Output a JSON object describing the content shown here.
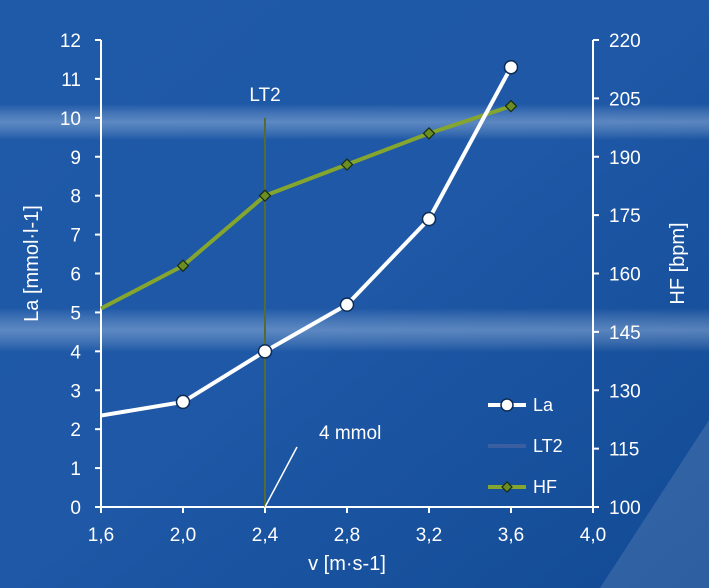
{
  "chart_data": {
    "type": "line",
    "x_axis": {
      "label": "v [m·s-1]",
      "range": [
        1.6,
        4.0
      ],
      "ticks": [
        1.6,
        2.0,
        2.4,
        2.8,
        3.2,
        3.6,
        4.0
      ],
      "tick_labels": [
        "1,6",
        "2,0",
        "2,4",
        "2,8",
        "3,2",
        "3,6",
        "4,0"
      ]
    },
    "y_left": {
      "label": "La [mmol·l-1]",
      "range": [
        0,
        12
      ],
      "ticks": [
        0,
        1,
        2,
        3,
        4,
        5,
        6,
        7,
        8,
        9,
        10,
        11,
        12
      ],
      "tick_labels": [
        "0",
        "1",
        "2",
        "3",
        "4",
        "5",
        "6",
        "7",
        "8",
        "9",
        "10",
        "11",
        "12"
      ]
    },
    "y_right": {
      "label": "HF [bpm]",
      "range": [
        100,
        220
      ],
      "ticks": [
        100,
        115,
        130,
        145,
        160,
        175,
        190,
        205,
        220
      ],
      "tick_labels": [
        "100",
        "115",
        "130",
        "145",
        "160",
        "175",
        "190",
        "205",
        "220"
      ]
    },
    "series": [
      {
        "name": "La",
        "axis": "left",
        "color": "#ffffff",
        "marker": "circle",
        "x": [
          1.6,
          2.0,
          2.4,
          2.8,
          3.2,
          3.6
        ],
        "y": [
          2.35,
          2.7,
          4.0,
          5.2,
          7.4,
          11.3
        ],
        "marker_from_index": 1
      },
      {
        "name": "HF",
        "axis": "right",
        "color": "#84a52e",
        "marker": "diamond",
        "marker_color": "#6b8e23",
        "x": [
          1.6,
          2.0,
          2.4,
          2.8,
          3.2,
          3.6
        ],
        "y": [
          151,
          162,
          180,
          188,
          196,
          203
        ],
        "marker_from_index": 1
      }
    ],
    "vertical_line": {
      "name": "LT2",
      "x": 2.4,
      "y_top": 10,
      "color": "#556b2f",
      "label": "LT2"
    },
    "annotation": {
      "text": "4 mmol",
      "x": 2.4,
      "y": 0
    },
    "legend": {
      "position": "bottom-right",
      "items": [
        {
          "name": "La",
          "color": "#ffffff",
          "marker": "circle"
        },
        {
          "name": "LT2",
          "color": "#3a5fa0",
          "marker": "none"
        },
        {
          "name": "HF",
          "color": "#84a52e",
          "marker": "diamond"
        }
      ]
    },
    "grid": false
  }
}
